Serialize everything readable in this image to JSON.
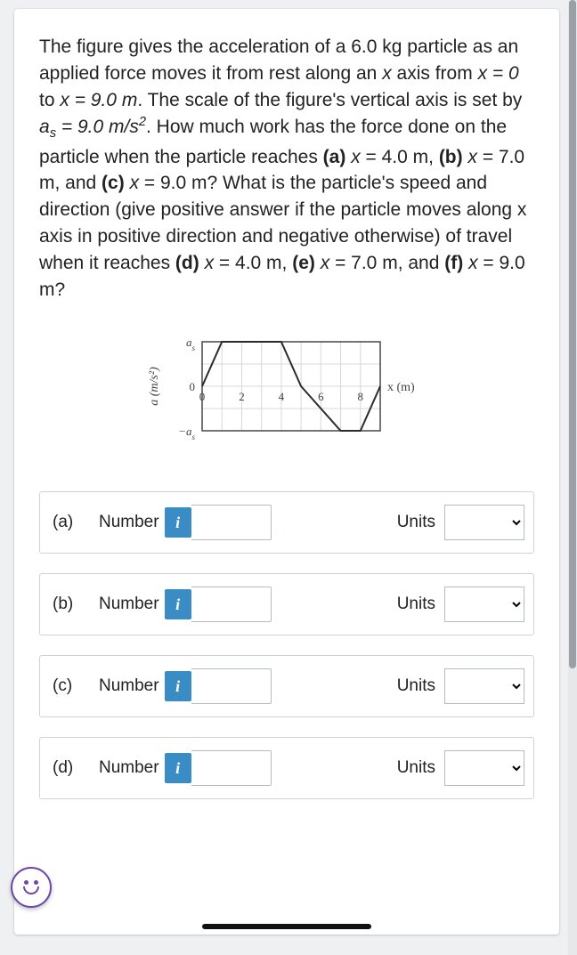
{
  "problem": {
    "prefix": "The figure gives the acceleration of a ",
    "mass": "6.0 kg",
    "mid1": " particle as an applied force moves it from rest along an ",
    "axis_var": "x",
    "mid2": " axis from ",
    "x0": "x = 0",
    "to_word": " to ",
    "x_end": "x = 9.0 m",
    "mid3": ". The scale of the figure's vertical axis is set by ",
    "a_s_expr": "a_s = 9.0 m/s²",
    "mid4": ". How much work has the force done on the particle when the particle reaches ",
    "part_a": "(a) x = 4.0 m",
    "comma1": ", ",
    "part_b": "(b) x = 7.0 m",
    "comma2": ", and ",
    "part_c": "(c) x = 9.0 m",
    "mid5": "? What is the particle's speed and direction (give positive answer if the particle moves along x axis in positive direction and negative otherwise) of travel when it reaches ",
    "part_d": "(d) x = 4.0 m",
    "comma3": ", ",
    "part_e": "(e) x = 7.0 m",
    "comma4": ", and ",
    "part_f": "(f) x = 9.0 m",
    "end": "?"
  },
  "figure": {
    "type": "line",
    "ylabel": "a (m/s²)",
    "xlabel": "x (m)",
    "y_tick_labels": [
      "a_s",
      "0",
      "−a_s"
    ],
    "x_tick_values": [
      0,
      2,
      4,
      6,
      8
    ],
    "x_tick_labels": [
      "0",
      "2",
      "4",
      "6",
      "8"
    ],
    "xlim": [
      0,
      9
    ],
    "ylim": [
      -1,
      1
    ],
    "grid_color": "#d5d8db",
    "axis_color": "#3a3a3a",
    "line_color": "#2a2a2a",
    "line_width": 2,
    "background_color": "#ffffff",
    "label_fontsize": 14,
    "tick_fontsize": 13,
    "points_x": [
      0,
      1,
      4,
      5,
      7,
      8,
      9
    ],
    "points_y": [
      0,
      1,
      1,
      0,
      -1,
      -1,
      0
    ]
  },
  "answers": [
    {
      "label": "(a)",
      "number_word": "Number",
      "info": "i",
      "units_word": "Units",
      "placeholder": ""
    },
    {
      "label": "(b)",
      "number_word": "Number",
      "info": "i",
      "units_word": "Units",
      "placeholder": ""
    },
    {
      "label": "(c)",
      "number_word": "Number",
      "info": "i",
      "units_word": "Units",
      "placeholder": ""
    },
    {
      "label": "(d)",
      "number_word": "Number",
      "info": "i",
      "units_word": "Units",
      "placeholder": ""
    }
  ]
}
